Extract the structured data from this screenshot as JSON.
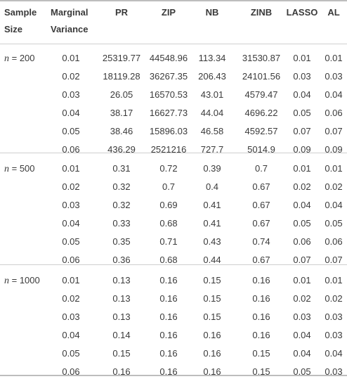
{
  "headers": {
    "sample_size_l1": "Sample",
    "sample_size_l2": "Size",
    "marginal_l1": "Marginal",
    "marginal_l2": "Variance",
    "pr": "PR",
    "zip": "ZIP",
    "nb": "NB",
    "zinb": "ZINB",
    "lasso": "LASSO",
    "al": "AL"
  },
  "groups": [
    {
      "n_var": "n",
      "n_value": " = 200",
      "rows": [
        [
          "0.01",
          "25319.77",
          "44548.96",
          "113.34",
          "31530.87",
          "0.01",
          "0.01"
        ],
        [
          "0.02",
          "18119.28",
          "36267.35",
          "206.43",
          "24101.56",
          "0.03",
          "0.03"
        ],
        [
          "0.03",
          "26.05",
          "16570.53",
          "43.01",
          "4579.47",
          "0.04",
          "0.04"
        ],
        [
          "0.04",
          "38.17",
          "16627.73",
          "44.04",
          "4696.22",
          "0.05",
          "0.06"
        ],
        [
          "0.05",
          "38.46",
          "15896.03",
          "46.58",
          "4592.57",
          "0.07",
          "0.07"
        ],
        [
          "0.06",
          "436.29",
          "2521216",
          "727.7",
          "5014.9",
          "0.09",
          "0.09"
        ]
      ]
    },
    {
      "n_var": "n",
      "n_value": " = 500",
      "rows": [
        [
          "0.01",
          "0.31",
          "0.72",
          "0.39",
          "0.7",
          "0.01",
          "0.01"
        ],
        [
          "0.02",
          "0.32",
          "0.7",
          "0.4",
          "0.67",
          "0.02",
          "0.02"
        ],
        [
          "0.03",
          "0.32",
          "0.69",
          "0.41",
          "0.67",
          "0.04",
          "0.04"
        ],
        [
          "0.04",
          "0.33",
          "0.68",
          "0.41",
          "0.67",
          "0.05",
          "0.05"
        ],
        [
          "0.05",
          "0.35",
          "0.71",
          "0.43",
          "0.74",
          "0.06",
          "0.06"
        ],
        [
          "0.06",
          "0.36",
          "0.68",
          "0.44",
          "0.67",
          "0.07",
          "0.07"
        ]
      ]
    },
    {
      "n_var": "n",
      "n_value": " = 1000",
      "rows": [
        [
          "0.01",
          "0.13",
          "0.16",
          "0.15",
          "0.16",
          "0.01",
          "0.01"
        ],
        [
          "0.02",
          "0.13",
          "0.16",
          "0.15",
          "0.16",
          "0.02",
          "0.02"
        ],
        [
          "0.03",
          "0.13",
          "0.16",
          "0.15",
          "0.16",
          "0.03",
          "0.03"
        ],
        [
          "0.04",
          "0.14",
          "0.16",
          "0.16",
          "0.16",
          "0.04",
          "0.03"
        ],
        [
          "0.05",
          "0.15",
          "0.16",
          "0.16",
          "0.15",
          "0.04",
          "0.04"
        ],
        [
          "0.06",
          "0.16",
          "0.16",
          "0.16",
          "0.15",
          "0.05",
          "0.03"
        ]
      ]
    }
  ]
}
